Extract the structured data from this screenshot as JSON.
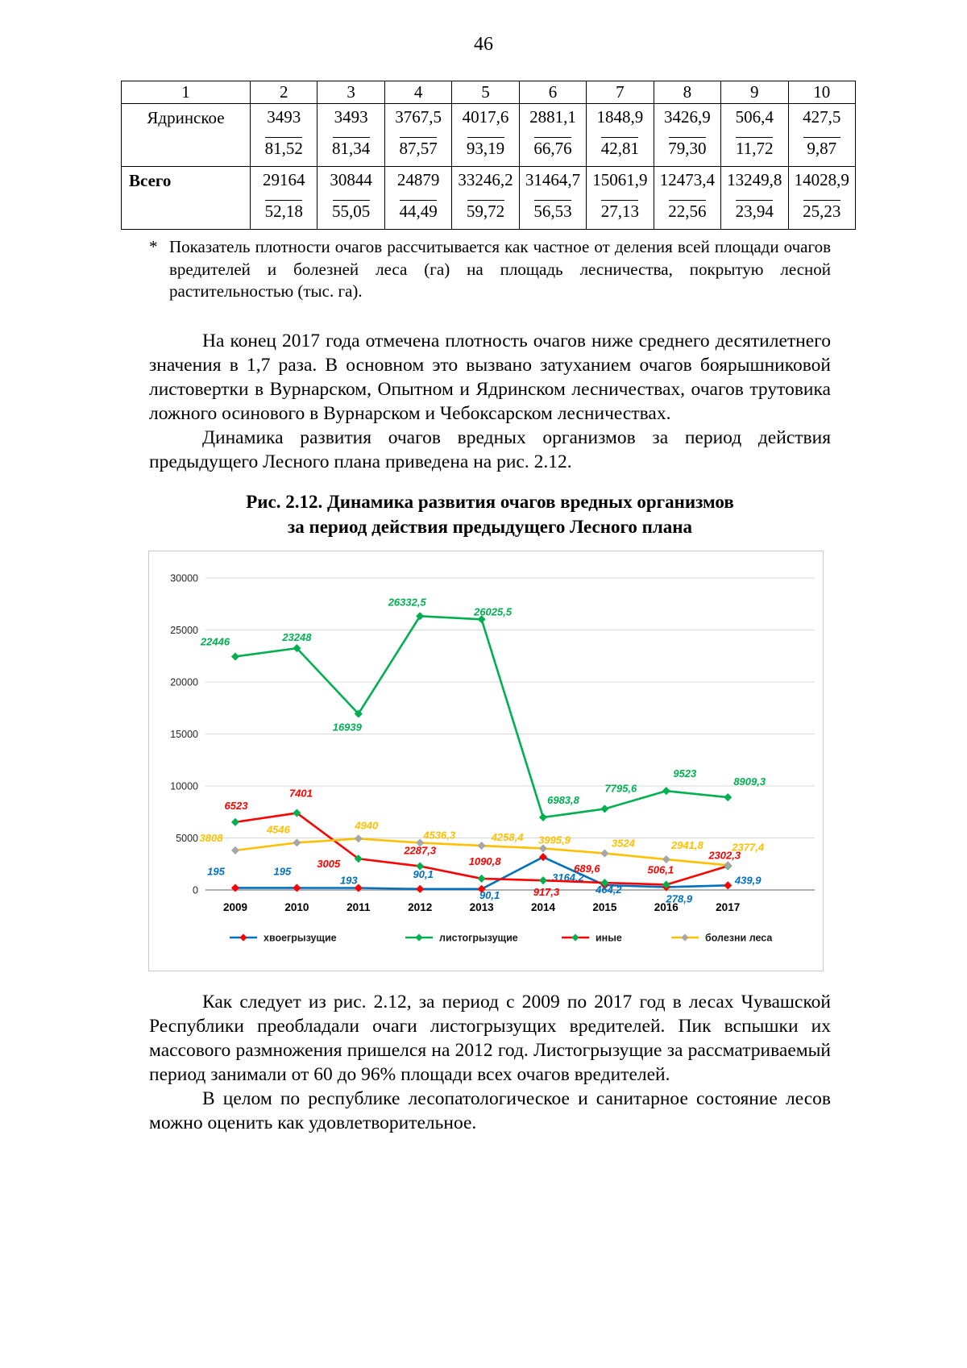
{
  "page": {
    "number": "46"
  },
  "table": {
    "headers": [
      "1",
      "2",
      "3",
      "4",
      "5",
      "6",
      "7",
      "8",
      "9",
      "10"
    ],
    "rows": [
      {
        "label": "Ядринское",
        "bold": false,
        "cells": [
          {
            "num": "3493",
            "den": "81,52"
          },
          {
            "num": "3493",
            "den": "81,34"
          },
          {
            "num": "3767,5",
            "den": "87,57"
          },
          {
            "num": "4017,6",
            "den": "93,19"
          },
          {
            "num": "2881,1",
            "den": "66,76"
          },
          {
            "num": "1848,9",
            "den": "42,81"
          },
          {
            "num": "3426,9",
            "den": "79,30"
          },
          {
            "num": "506,4",
            "den": "11,72"
          },
          {
            "num": "427,5",
            "den": "9,87"
          }
        ]
      },
      {
        "label": "Всего",
        "bold": true,
        "cells": [
          {
            "num": "29164",
            "den": "52,18"
          },
          {
            "num": "30844",
            "den": "55,05"
          },
          {
            "num": "24879",
            "den": "44,49"
          },
          {
            "num": "33246,2",
            "den": "59,72"
          },
          {
            "num": "31464,7",
            "den": "56,53"
          },
          {
            "num": "15061,9",
            "den": "27,13"
          },
          {
            "num": "12473,4",
            "den": "22,56"
          },
          {
            "num": "13249,8",
            "den": "23,94"
          },
          {
            "num": "14028,9",
            "den": "25,23"
          }
        ]
      }
    ]
  },
  "footnote": {
    "marker": "*",
    "text": "Показатель плотности очагов рассчитывается как частное от деления всей площади очагов вредителей и болезней леса (га) на площадь лесничества, покрытую лесной растительностью (тыс. га)."
  },
  "paragraphs": {
    "p1": "На конец 2017 года отмечена плотность очагов ниже среднего десятилетнего значения в 1,7 раза. В основном это вызвано затуханием очагов боярышниковой листовертки в Вурнарском, Опытном и Ядринском лесничествах, очагов трутовика ложного осинового в Вурнарском и Чебоксарском лесничествах.",
    "p2": "Динамика развития очагов вредных организмов за период действия предыдущего Лесного плана приведена на рис. 2.12.",
    "p3": "Как следует из рис. 2.12, за период с 2009 по 2017 год в лесах Чувашской Республики преобладали очаги листогрызущих вредителей. Пик вспышки их массового размножения пришелся на 2012 год. Листогрызущие за рассматриваемый период занимали от 60 до 96% площади всех очагов вредителей.",
    "p4": "В целом по республике лесопатологическое и санитарное состояние лесов можно оценить как удовлетворительное."
  },
  "figure": {
    "caption_line1": "Рис. 2.12. Динамика развития очагов вредных организмов",
    "caption_line2": "за период действия предыдущего Лесного плана"
  },
  "chart_data": {
    "type": "line",
    "title": "",
    "x": [
      "2009",
      "2010",
      "2011",
      "2012",
      "2013",
      "2014",
      "2015",
      "2016",
      "2017"
    ],
    "ylim": [
      0,
      30000
    ],
    "yticks": [
      0,
      5000,
      10000,
      15000,
      20000,
      25000,
      30000
    ],
    "grid": true,
    "legend_position": "bottom",
    "colors": {
      "grid": "#d9d9d9",
      "axis": "#808080",
      "tick_text": "#262626"
    },
    "series": [
      {
        "name": "хвоегрызущие",
        "color": "#0070C0",
        "marker_color": "#FF0000",
        "values": [
          195,
          195,
          193,
          90.1,
          90.1,
          3164.2,
          464.2,
          278.9,
          439.9
        ],
        "labels": [
          "195",
          "195",
          "193",
          "90,1",
          "90,1",
          "3164,2",
          "464,2",
          "278,9",
          "439,9"
        ]
      },
      {
        "name": "листогрызущие",
        "color": "#00B050",
        "marker_color": "#00B050",
        "values": [
          22446,
          23248,
          16939,
          26332.5,
          26025.5,
          6983.8,
          7795.6,
          9523,
          8909.3
        ],
        "labels": [
          "22446",
          "23248",
          "16939",
          "26332,5",
          "26025,5",
          "6983,8",
          "7795,6",
          "9523",
          "8909,3"
        ]
      },
      {
        "name": "иные",
        "color": "#FF0000",
        "marker_color": "#00B050",
        "values": [
          6523,
          7401,
          3005,
          2287.3,
          1090.8,
          917.3,
          689.6,
          506.1,
          2302.3
        ],
        "labels": [
          "6523",
          "7401",
          "3005",
          "2287,3",
          "1090,8",
          "917,3",
          "689,6",
          "506,1",
          "2302,3"
        ]
      },
      {
        "name": "болезни леса",
        "color": "#FFC000",
        "marker_color": "#A6A6A6",
        "values": [
          3808,
          4546,
          4940,
          4536.3,
          4258.4,
          3995.9,
          3524,
          2941.8,
          2377.4
        ],
        "labels": [
          "3808",
          "4546",
          "4940",
          "4536,3",
          "4258,4",
          "3995,9",
          "3524",
          "2941,8",
          "2377,4"
        ]
      }
    ]
  }
}
